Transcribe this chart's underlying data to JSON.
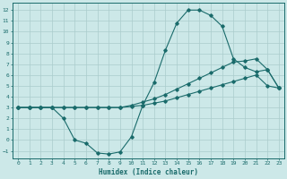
{
  "background_color": "#cce8e8",
  "grid_color": "#aacccc",
  "line_color": "#1a6b6b",
  "xlabel": "Humidex (Indice chaleur)",
  "xlim": [
    -0.5,
    23.5
  ],
  "ylim": [
    -1.7,
    12.7
  ],
  "xticks": [
    0,
    1,
    2,
    3,
    4,
    5,
    6,
    7,
    8,
    9,
    10,
    11,
    12,
    13,
    14,
    15,
    16,
    17,
    18,
    19,
    20,
    21,
    22,
    23
  ],
  "yticks": [
    -1,
    0,
    1,
    2,
    3,
    4,
    5,
    6,
    7,
    8,
    9,
    10,
    11,
    12
  ],
  "line1_x": [
    0,
    1,
    2,
    3,
    4,
    5,
    6,
    7,
    8,
    9,
    10,
    11,
    12,
    13,
    14,
    15,
    16,
    17,
    18,
    19,
    20,
    21,
    22,
    23
  ],
  "line1_y": [
    3.0,
    3.0,
    3.0,
    3.0,
    2.0,
    0.0,
    -0.3,
    -1.2,
    -1.3,
    -1.1,
    0.3,
    3.2,
    5.3,
    8.3,
    10.8,
    12.0,
    12.0,
    11.5,
    10.5,
    7.5,
    6.7,
    6.3,
    6.5,
    4.8
  ],
  "line2_x": [
    0,
    1,
    2,
    3,
    4,
    5,
    6,
    7,
    8,
    9,
    10,
    11,
    12,
    13,
    14,
    15,
    16,
    17,
    18,
    19,
    20,
    21,
    22,
    23
  ],
  "line2_y": [
    3.0,
    3.0,
    3.0,
    3.0,
    3.0,
    3.0,
    3.0,
    3.0,
    3.0,
    3.0,
    3.2,
    3.5,
    3.8,
    4.2,
    4.7,
    5.2,
    5.7,
    6.2,
    6.7,
    7.2,
    7.3,
    7.5,
    6.5,
    4.8
  ],
  "line3_x": [
    0,
    1,
    2,
    3,
    4,
    5,
    6,
    7,
    8,
    9,
    10,
    11,
    12,
    13,
    14,
    15,
    16,
    17,
    18,
    19,
    20,
    21,
    22,
    23
  ],
  "line3_y": [
    3.0,
    3.0,
    3.0,
    3.0,
    3.0,
    3.0,
    3.0,
    3.0,
    3.0,
    3.0,
    3.1,
    3.2,
    3.4,
    3.6,
    3.9,
    4.2,
    4.5,
    4.8,
    5.1,
    5.4,
    5.7,
    6.0,
    5.0,
    4.8
  ]
}
